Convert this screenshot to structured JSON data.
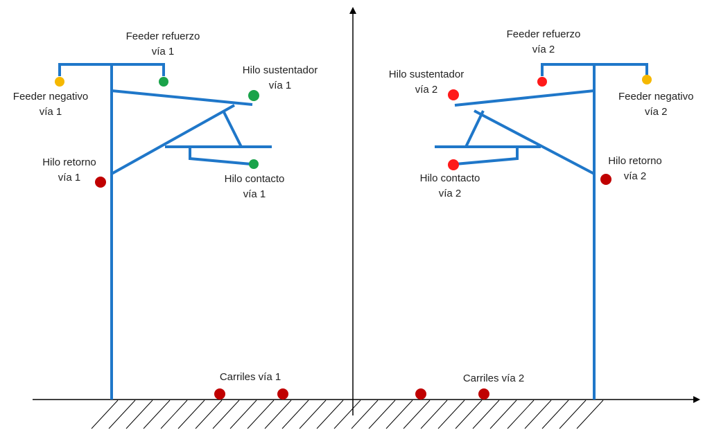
{
  "colors": {
    "pole": "#1f77c9",
    "axis": "#000000",
    "hatch": "#000000",
    "feeder_negativo": "#f5b800",
    "track1_conductor": "#1aa34a",
    "track2_conductor": "#ff1a1a",
    "rail_and_return": "#c00000"
  },
  "labels": {
    "feeder_refuerzo_1": {
      "line1": "Feeder refuerzo",
      "line2": "vía 1"
    },
    "feeder_negativo_1": {
      "line1": "Feeder negativo",
      "line2": "vía 1"
    },
    "hilo_sustentador_1": {
      "line1": "Hilo sustentador",
      "line2": "vía 1"
    },
    "hilo_retorno_1": {
      "line1": "Hilo retorno",
      "line2": "vía 1"
    },
    "hilo_contacto_1": {
      "line1": "Hilo contacto",
      "line2": "vía 1"
    },
    "carriles_1": "Carriles vía 1",
    "feeder_refuerzo_2": {
      "line1": "Feeder refuerzo",
      "line2": "vía 2"
    },
    "feeder_negativo_2": {
      "line1": "Feeder negativo",
      "line2": "vía 2"
    },
    "hilo_sustentador_2": {
      "line1": "Hilo sustentador",
      "line2": "vía 2"
    },
    "hilo_retorno_2": {
      "line1": "Hilo retorno",
      "line2": "vía 2"
    },
    "hilo_contacto_2": {
      "line1": "Hilo contacto",
      "line2": "vía 2"
    },
    "carriles_2": "Carriles vía 2"
  }
}
